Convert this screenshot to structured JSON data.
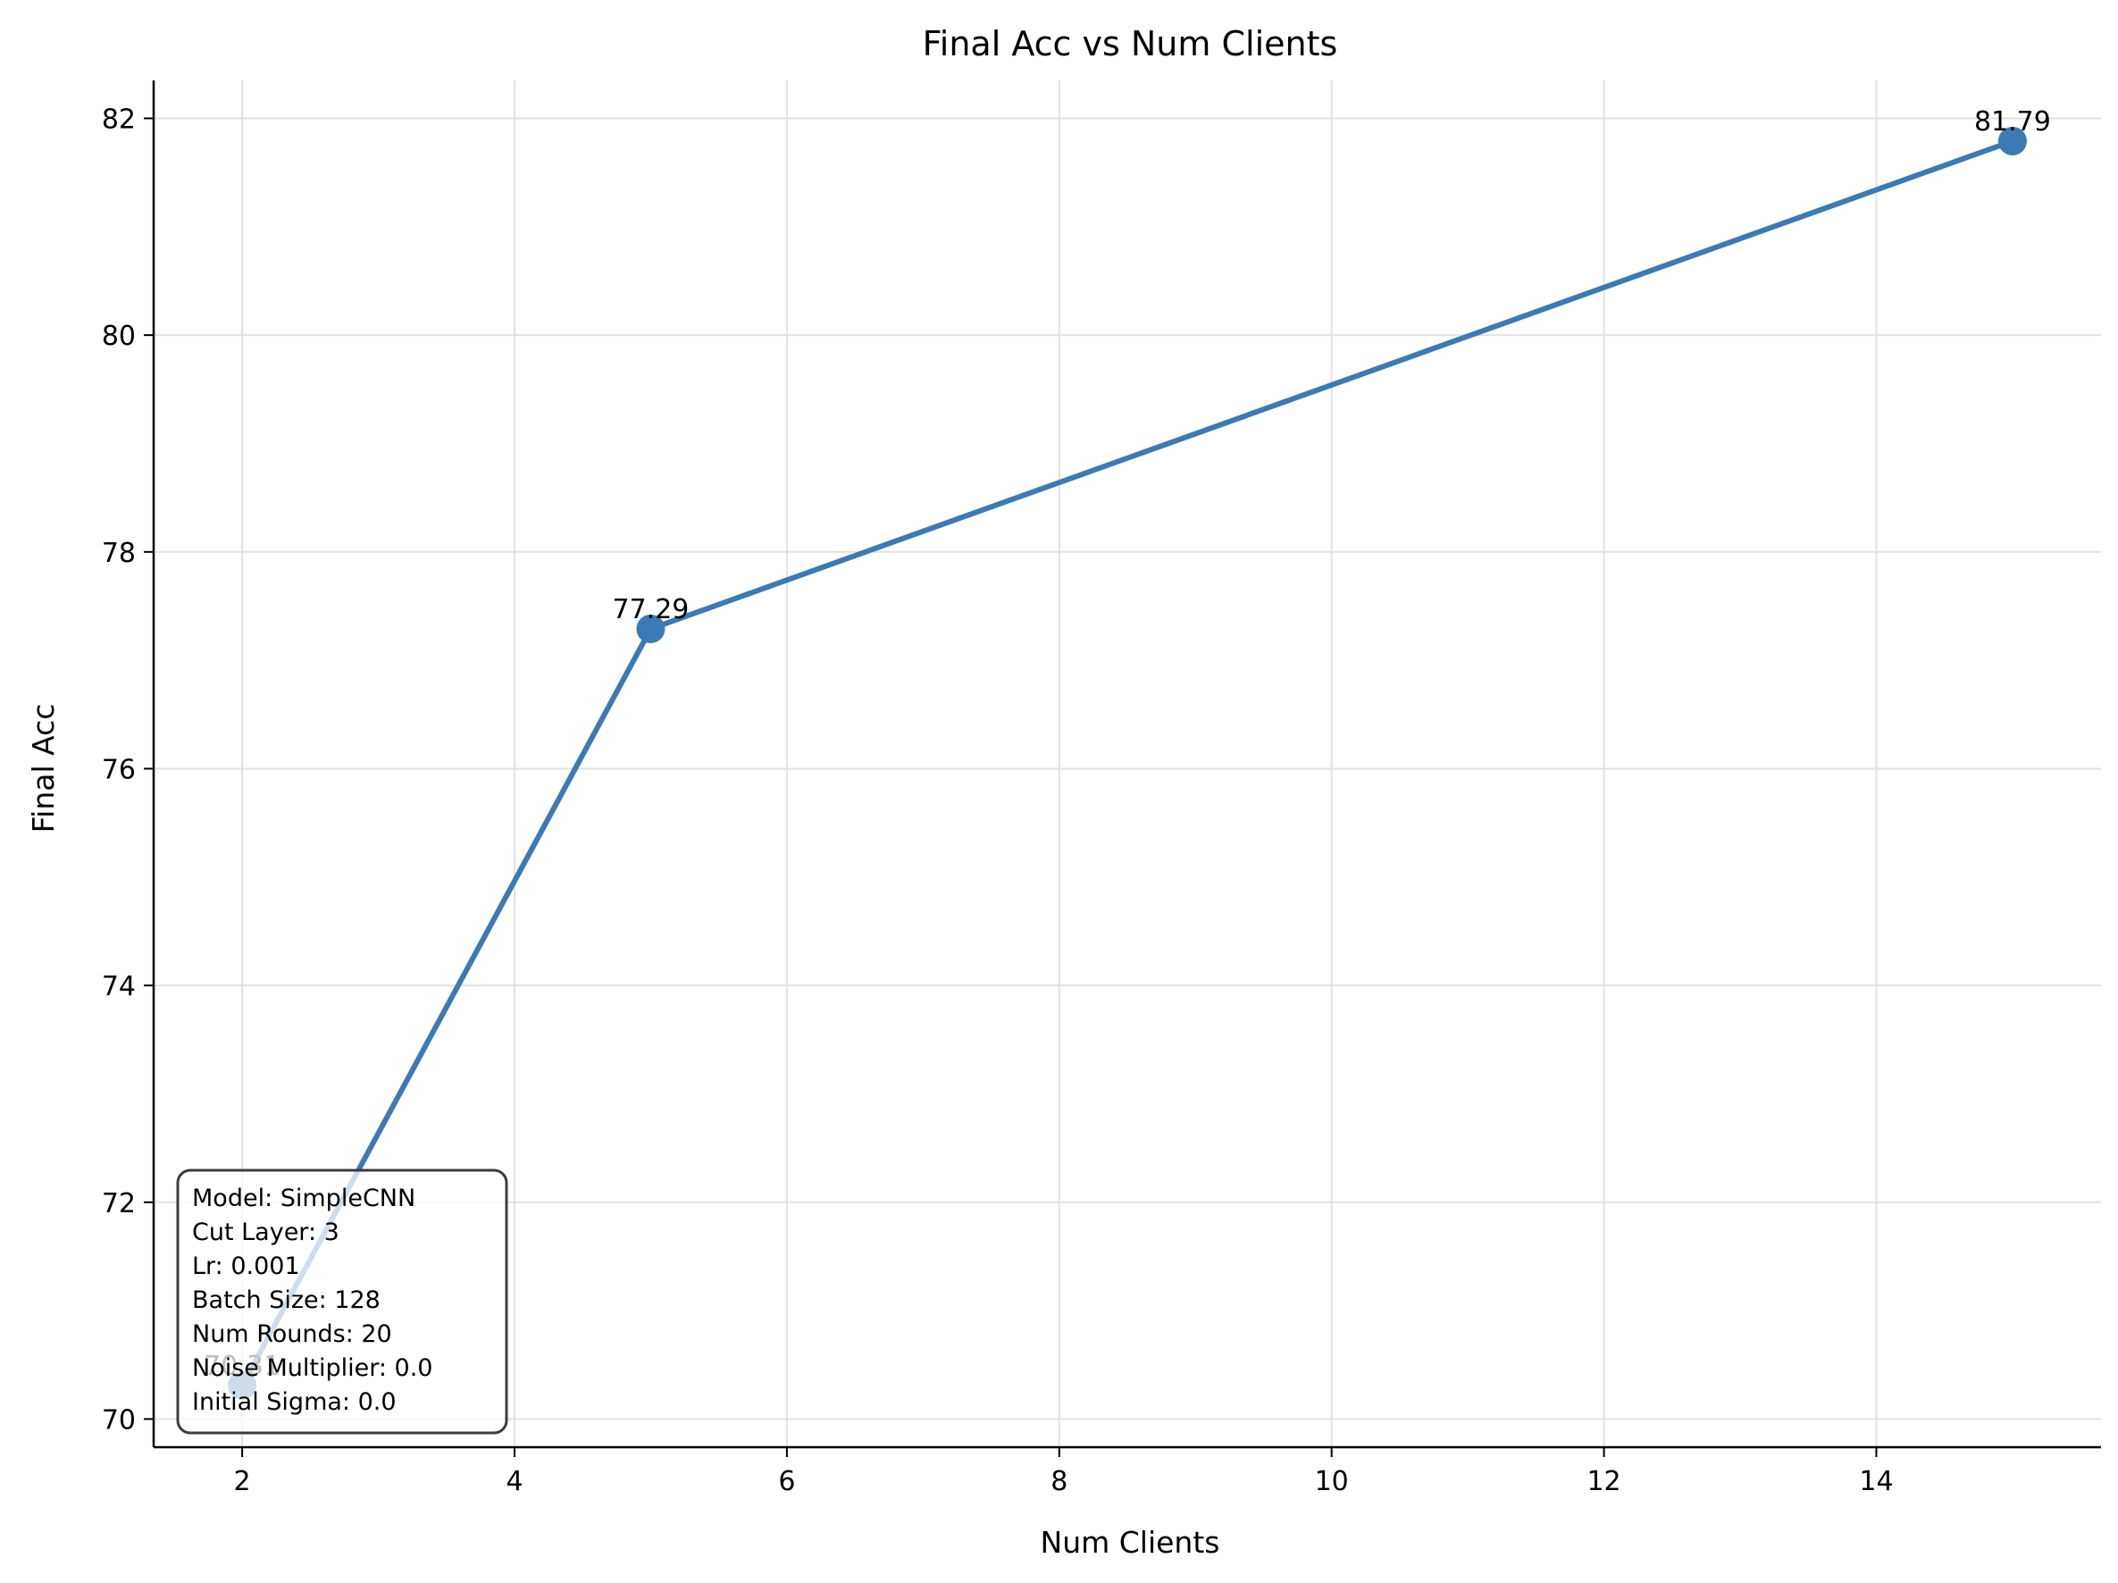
{
  "chart_data": {
    "type": "line",
    "title": "Final Acc vs Num Clients",
    "xlabel": "Num Clients",
    "ylabel": "Final Acc",
    "x": [
      2,
      5,
      15
    ],
    "series": [
      {
        "values": [
          70.31,
          77.29,
          81.79
        ],
        "color": "#3a7ab5"
      }
    ],
    "data_labels": [
      "70.31",
      "77.29",
      "81.79"
    ],
    "xlim": [
      1.35,
      15.65
    ],
    "ylim": [
      69.74,
      82.35
    ],
    "xticks": [
      2,
      4,
      6,
      8,
      10,
      12,
      14
    ],
    "yticks": [
      70,
      72,
      74,
      76,
      78,
      80,
      82
    ],
    "grid": true,
    "legend": "none"
  },
  "info_box": {
    "lines": [
      "Model: SimpleCNN",
      "Cut Layer: 3",
      "Lr: 0.001",
      "Batch Size: 128",
      "Num Rounds: 20",
      "Noise Multiplier: 0.0",
      "Initial Sigma: 0.0"
    ]
  }
}
